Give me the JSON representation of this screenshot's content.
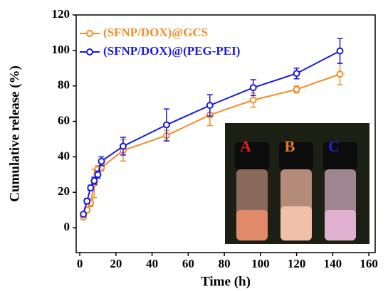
{
  "chart_data": {
    "type": "line",
    "x_label": "Time (h)",
    "y_label": "Cumulative release (%)",
    "x": [
      2,
      4,
      6,
      8,
      10,
      12,
      24,
      48,
      72,
      96,
      120,
      144
    ],
    "series": [
      {
        "name": "(SFNP/DOX)@GCS",
        "color": "#f28c28",
        "values": [
          6,
          10,
          14,
          25,
          33,
          34,
          43.6,
          52,
          63.6,
          72,
          78,
          86.6
        ],
        "errors": [
          1,
          1.5,
          2,
          8,
          2,
          2,
          6,
          3,
          6,
          4,
          2,
          6
        ]
      },
      {
        "name": "(SFNP/DOX)@(PEG-PEI)",
        "color": "#1a1adb",
        "values": [
          7.6,
          15,
          22.5,
          26.5,
          30,
          37.5,
          46,
          58,
          69,
          79,
          87,
          99.7
        ],
        "errors": [
          1,
          1.5,
          1.5,
          2,
          2,
          2.5,
          5,
          9,
          6,
          4.5,
          3,
          7
        ]
      }
    ],
    "xlim": [
      -2,
      163.5
    ],
    "xticks": [
      0,
      20,
      40,
      60,
      80,
      100,
      120,
      140,
      160
    ],
    "ylim": [
      -14,
      120
    ],
    "yticks": [
      0,
      20,
      40,
      60,
      80,
      100,
      120
    ],
    "legend": "upper-left",
    "annotations": [
      "A",
      "B",
      "C"
    ]
  }
}
